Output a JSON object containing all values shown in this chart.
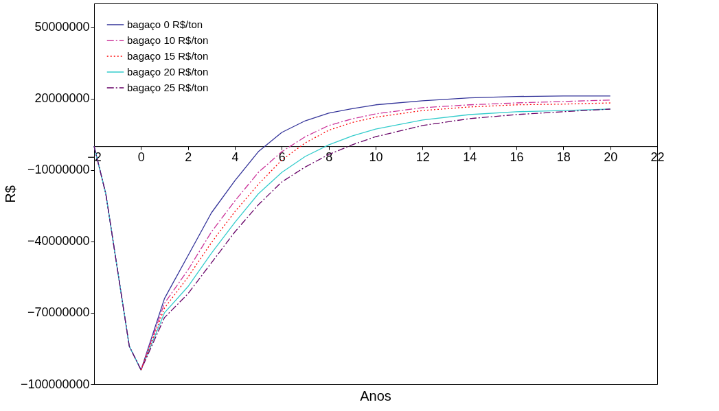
{
  "chart_data": {
    "type": "line",
    "xlabel": "Anos",
    "ylabel": "R$",
    "xlim": [
      -2,
      22
    ],
    "xticks": [
      -2,
      0,
      2,
      4,
      6,
      8,
      10,
      12,
      14,
      16,
      18,
      20,
      22
    ],
    "ylim": [
      -100000000,
      60000000
    ],
    "yticks": [
      -100000000,
      -70000000,
      -40000000,
      -10000000,
      20000000,
      50000000
    ],
    "grid": false,
    "legend": "top left",
    "marker": "none",
    "x": [
      -2,
      -1.5,
      -1,
      -0.5,
      0,
      1,
      2,
      3,
      4,
      5,
      6,
      7,
      8,
      9,
      10,
      12,
      14,
      16,
      18,
      20
    ],
    "series": [
      {
        "name": "bagaço 0 R$/ton",
        "color": "#333399",
        "line_style": "solid",
        "values": [
          0,
          -20000000,
          -52000000,
          -84000000,
          -94000000,
          -64000000,
          -46000000,
          -28000000,
          -14500000,
          -2300000,
          5800000,
          10700000,
          13900000,
          15800000,
          17400000,
          19100000,
          20300000,
          20900000,
          21100000,
          21100000
        ]
      },
      {
        "name": "bagaço 10 R$/ton",
        "color": "#cc3399",
        "line_style": "dashed",
        "values": [
          null,
          null,
          null,
          null,
          -94000000,
          -66000000,
          -52000000,
          -36000000,
          -23000000,
          -11000000,
          -2300000,
          4000000,
          8700000,
          11500000,
          13600000,
          16200000,
          17400000,
          18200000,
          18800000,
          19400000
        ]
      },
      {
        "name": "bagaço 15 R$/ton",
        "color": "#ff0000",
        "line_style": "dotted",
        "values": [
          null,
          null,
          null,
          null,
          -94000000,
          -68000000,
          -55000000,
          -40500000,
          -27500000,
          -16000000,
          -5800000,
          1400000,
          6700000,
          10000000,
          12200000,
          15000000,
          16500000,
          17400000,
          17700000,
          18200000
        ]
      },
      {
        "name": "bagaço 20 R$/ton",
        "color": "#33cccc",
        "line_style": "solid",
        "values": [
          0,
          -20000000,
          -52000000,
          -84000000,
          -94000000,
          -70000000,
          -59000000,
          -45000000,
          -32000000,
          -20000000,
          -11000000,
          -4300000,
          600000,
          4300000,
          7200000,
          11000000,
          13300000,
          14500000,
          15000000,
          15600000
        ]
      },
      {
        "name": "bagaço 25 R$/ton",
        "color": "#660066",
        "line_style": "dashed",
        "values": [
          0,
          -20000000,
          -52000000,
          -84000000,
          -94000000,
          -72000000,
          -62000000,
          -49000000,
          -36000000,
          -24600000,
          -15000000,
          -8700000,
          -3500000,
          600000,
          4000000,
          8700000,
          11600000,
          13300000,
          14500000,
          15600000
        ]
      }
    ]
  }
}
